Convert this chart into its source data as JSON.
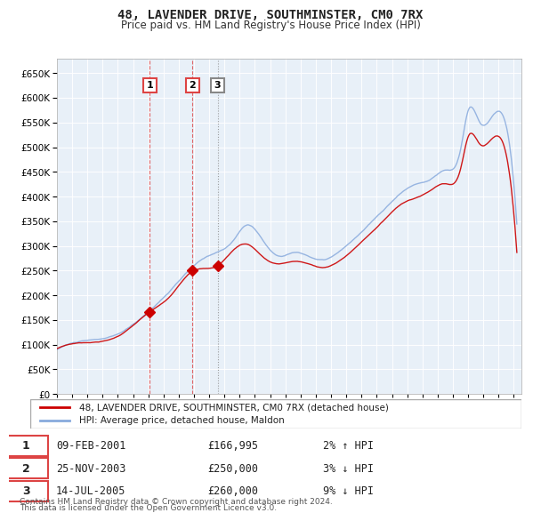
{
  "title": "48, LAVENDER DRIVE, SOUTHMINSTER, CM0 7RX",
  "subtitle": "Price paid vs. HM Land Registry's House Price Index (HPI)",
  "ylabel": "",
  "ylim": [
    0,
    680000
  ],
  "yticks": [
    0,
    50000,
    100000,
    150000,
    200000,
    250000,
    300000,
    350000,
    400000,
    450000,
    500000,
    550000,
    600000,
    650000
  ],
  "background_color": "#ddeeff",
  "plot_bg": "#e8f0f8",
  "grid_color": "#ffffff",
  "red_line_color": "#cc0000",
  "blue_line_color": "#88aadd",
  "vline1_color": "#dd4444",
  "vline2_color": "#dd4444",
  "vline3_color": "#888888",
  "sale1_year": 2001.1,
  "sale1_price": 166995,
  "sale2_year": 2003.9,
  "sale2_price": 250000,
  "sale3_year": 2005.55,
  "sale3_price": 260000,
  "legend_entries": [
    "48, LAVENDER DRIVE, SOUTHMINSTER, CM0 7RX (detached house)",
    "HPI: Average price, detached house, Maldon"
  ],
  "table_rows": [
    [
      "1",
      "09-FEB-2001",
      "£166,995",
      "2% ↑ HPI"
    ],
    [
      "2",
      "25-NOV-2003",
      "£250,000",
      "3% ↓ HPI"
    ],
    [
      "3",
      "14-JUL-2005",
      "£260,000",
      "9% ↓ HPI"
    ]
  ],
  "footer": "Contains HM Land Registry data © Crown copyright and database right 2024.\nThis data is licensed under the Open Government Licence v3.0.",
  "start_year": 1995,
  "end_year": 2025
}
